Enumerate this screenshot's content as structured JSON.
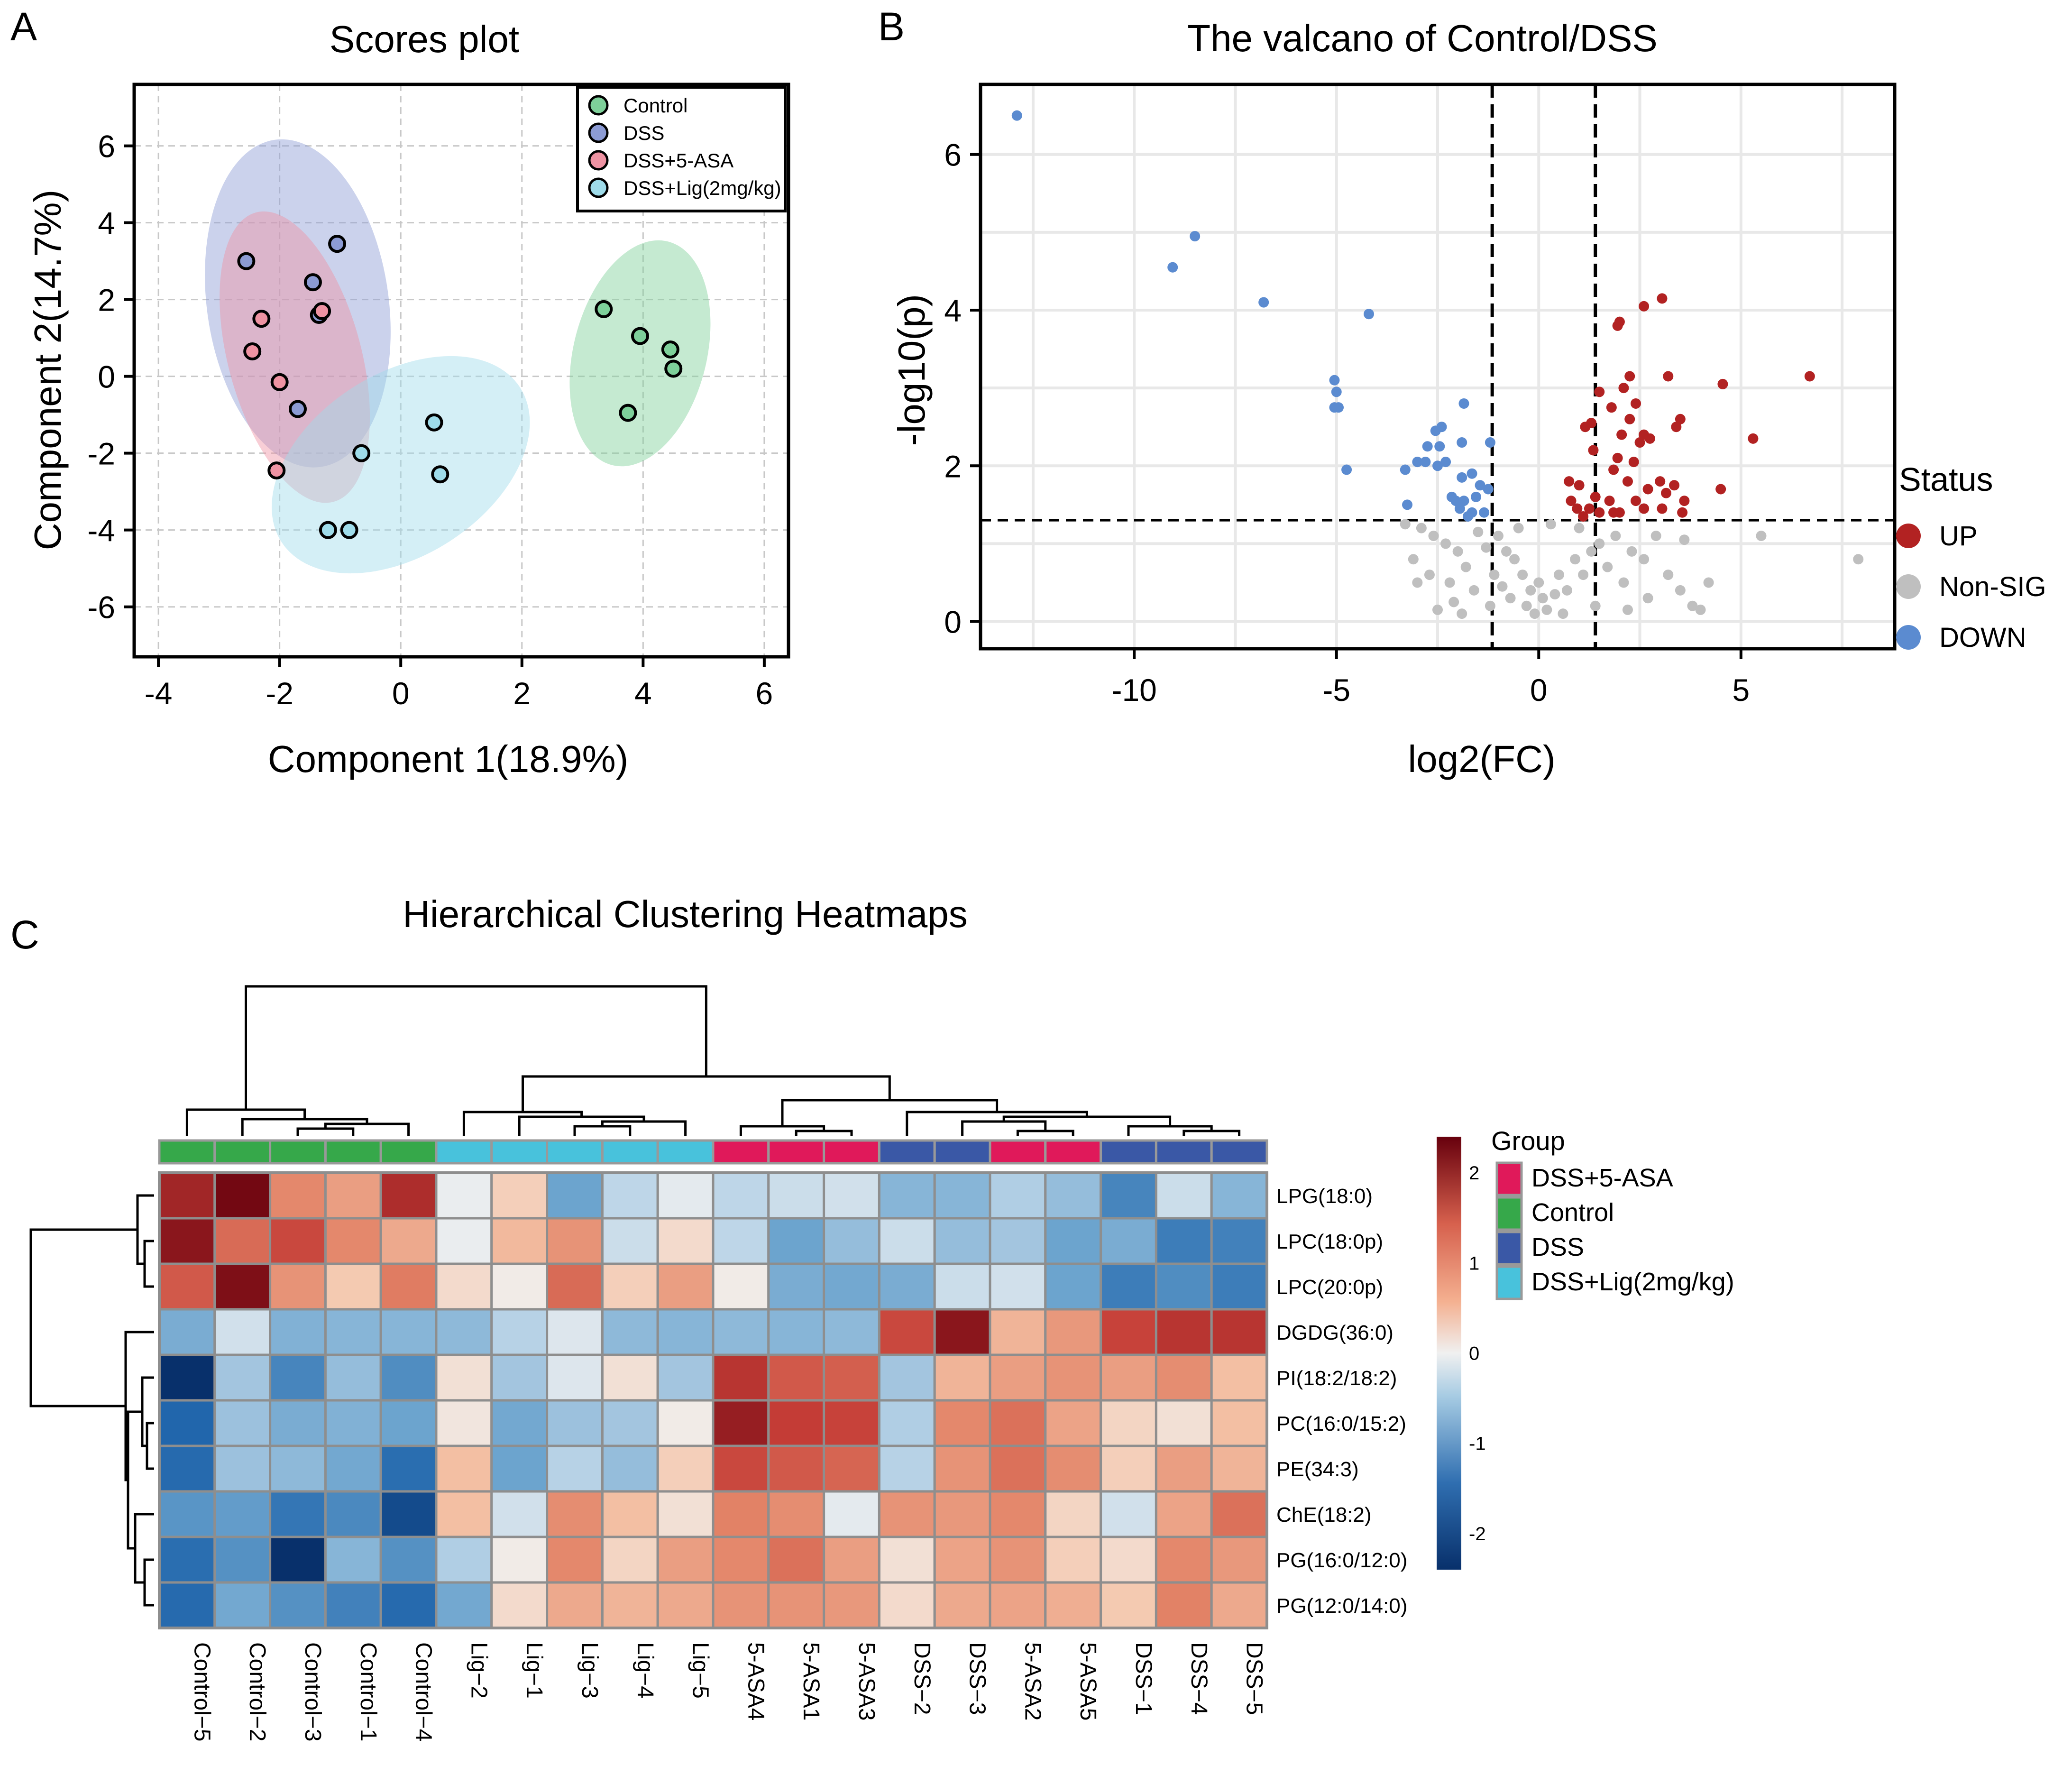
{
  "panels": {
    "a": {
      "letter": "A"
    },
    "b": {
      "letter": "B"
    },
    "c": {
      "letter": "C"
    }
  },
  "chart_data": [
    {
      "type": "scatter",
      "title": "Scores plot",
      "xlabel": "Component 1(18.9%)",
      "ylabel": "Component 2(14.7%)",
      "xlim": [
        -4.4,
        6.4
      ],
      "ylim": [
        -7.3,
        7.6
      ],
      "xticks": [
        -4,
        -2,
        0,
        2,
        4,
        6
      ],
      "yticks": [
        -6,
        -4,
        -2,
        0,
        2,
        4,
        6
      ],
      "grid": true,
      "legend_position": "top-right",
      "series": [
        {
          "name": "Control",
          "color": "#7ed09a",
          "ellipse": {
            "cx": 3.95,
            "cy": 0.6,
            "rx": 1.1,
            "ry": 3.0,
            "angle_deg": 14
          },
          "points": [
            [
              3.35,
              1.75
            ],
            [
              3.95,
              1.05
            ],
            [
              4.45,
              0.7
            ],
            [
              4.5,
              0.2
            ],
            [
              3.75,
              -0.95
            ]
          ]
        },
        {
          "name": "DSS",
          "color": "#8c9bd4",
          "ellipse": {
            "cx": -1.7,
            "cy": 1.9,
            "rx": 1.5,
            "ry": 4.3,
            "angle_deg": -8
          },
          "points": [
            [
              -2.55,
              3.0
            ],
            [
              -1.05,
              3.45
            ],
            [
              -1.45,
              2.45
            ],
            [
              -1.35,
              1.6
            ],
            [
              -1.7,
              -0.85
            ]
          ]
        },
        {
          "name": "DSS+5-ASA",
          "color": "#ef93a3",
          "ellipse": {
            "cx": -1.75,
            "cy": 0.5,
            "rx": 1.1,
            "ry": 3.9,
            "angle_deg": -15
          },
          "points": [
            [
              -2.3,
              1.5
            ],
            [
              -1.3,
              1.7
            ],
            [
              -2.45,
              0.65
            ],
            [
              -2.0,
              -0.15
            ],
            [
              -2.05,
              -2.45
            ]
          ]
        },
        {
          "name": "DSS+Lig(2mg/kg)",
          "color": "#9fdcea",
          "ellipse": {
            "cx": 0.0,
            "cy": -2.3,
            "rx": 1.5,
            "ry": 3.7,
            "angle_deg": 57
          },
          "points": [
            [
              0.55,
              -1.2
            ],
            [
              -0.65,
              -2.0
            ],
            [
              0.65,
              -2.55
            ],
            [
              -1.2,
              -4.0
            ],
            [
              -0.85,
              -4.0
            ]
          ]
        }
      ]
    },
    {
      "type": "scatter",
      "title": "The valcano of Control/DSS",
      "xlabel": "log2(FC)",
      "ylabel": "-log10(p)",
      "xlim": [
        -13.8,
        8.8
      ],
      "ylim": [
        -0.35,
        6.9
      ],
      "xticks": [
        -10,
        -5,
        0,
        5
      ],
      "yticks": [
        0,
        2,
        4,
        6
      ],
      "grid": true,
      "thresholds": {
        "fc_lines": [
          -1.15,
          1.4
        ],
        "p_line": 1.3
      },
      "legend_title": "Status",
      "legend_position": "right",
      "series": [
        {
          "name": "UP",
          "color": "#b22222",
          "points": [
            [
              2.6,
              4.05
            ],
            [
              3.05,
              4.15
            ],
            [
              2.0,
              3.85
            ],
            [
              1.95,
              3.8
            ],
            [
              6.7,
              3.15
            ],
            [
              4.55,
              3.05
            ],
            [
              2.25,
              3.15
            ],
            [
              3.2,
              3.15
            ],
            [
              1.5,
              2.95
            ],
            [
              2.1,
              3.0
            ],
            [
              2.4,
              2.8
            ],
            [
              1.8,
              2.75
            ],
            [
              2.25,
              2.6
            ],
            [
              3.5,
              2.6
            ],
            [
              3.4,
              2.5
            ],
            [
              1.3,
              2.55
            ],
            [
              1.15,
              2.5
            ],
            [
              2.05,
              2.4
            ],
            [
              2.6,
              2.4
            ],
            [
              2.75,
              2.35
            ],
            [
              2.5,
              2.3
            ],
            [
              5.3,
              2.35
            ],
            [
              1.35,
              2.2
            ],
            [
              1.95,
              2.1
            ],
            [
              2.35,
              2.05
            ],
            [
              1.85,
              1.95
            ],
            [
              0.75,
              1.8
            ],
            [
              1.0,
              1.75
            ],
            [
              2.2,
              1.8
            ],
            [
              2.7,
              1.7
            ],
            [
              3.0,
              1.8
            ],
            [
              3.35,
              1.75
            ],
            [
              4.5,
              1.7
            ],
            [
              3.15,
              1.65
            ],
            [
              0.8,
              1.55
            ],
            [
              1.4,
              1.6
            ],
            [
              1.75,
              1.55
            ],
            [
              2.4,
              1.55
            ],
            [
              3.6,
              1.55
            ],
            [
              0.95,
              1.45
            ],
            [
              1.25,
              1.45
            ],
            [
              1.5,
              1.4
            ],
            [
              2.0,
              1.4
            ],
            [
              2.6,
              1.45
            ],
            [
              3.05,
              1.45
            ],
            [
              3.55,
              1.4
            ],
            [
              1.85,
              1.4
            ],
            [
              1.1,
              1.35
            ]
          ]
        },
        {
          "name": "Non-SIG",
          "color": "#bfbfbf",
          "points": [
            [
              -2.9,
              1.2
            ],
            [
              -2.6,
              1.1
            ],
            [
              -3.1,
              0.8
            ],
            [
              -2.7,
              0.6
            ],
            [
              -3.0,
              0.5
            ],
            [
              -2.3,
              1.0
            ],
            [
              -2.0,
              0.9
            ],
            [
              -1.8,
              0.7
            ],
            [
              -2.2,
              0.5
            ],
            [
              -1.6,
              0.4
            ],
            [
              -1.5,
              1.15
            ],
            [
              -1.3,
              0.95
            ],
            [
              -1.0,
              1.1
            ],
            [
              -0.8,
              0.9
            ],
            [
              -0.6,
              0.8
            ],
            [
              -1.1,
              0.6
            ],
            [
              -0.9,
              0.45
            ],
            [
              -0.7,
              0.3
            ],
            [
              -0.4,
              0.6
            ],
            [
              -0.2,
              0.4
            ],
            [
              -0.3,
              0.2
            ],
            [
              0.0,
              0.5
            ],
            [
              0.1,
              0.3
            ],
            [
              0.2,
              0.15
            ],
            [
              -0.1,
              0.1
            ],
            [
              0.4,
              0.35
            ],
            [
              0.5,
              0.6
            ],
            [
              0.7,
              0.4
            ],
            [
              0.9,
              0.8
            ],
            [
              1.1,
              0.6
            ],
            [
              1.3,
              0.9
            ],
            [
              1.5,
              1.0
            ],
            [
              1.7,
              0.7
            ],
            [
              1.9,
              1.1
            ],
            [
              2.1,
              0.5
            ],
            [
              2.3,
              0.9
            ],
            [
              2.6,
              0.8
            ],
            [
              2.9,
              1.1
            ],
            [
              3.2,
              0.6
            ],
            [
              3.5,
              0.4
            ],
            [
              3.8,
              0.2
            ],
            [
              4.0,
              0.15
            ],
            [
              5.5,
              1.1
            ],
            [
              7.9,
              0.8
            ],
            [
              -1.9,
              0.1
            ],
            [
              -1.2,
              0.2
            ],
            [
              0.6,
              0.1
            ],
            [
              1.4,
              0.2
            ],
            [
              2.2,
              0.15
            ],
            [
              2.7,
              0.3
            ],
            [
              -2.5,
              0.15
            ],
            [
              -0.5,
              1.2
            ],
            [
              0.3,
              1.25
            ],
            [
              1.0,
              1.2
            ],
            [
              -3.3,
              1.25
            ],
            [
              3.6,
              1.05
            ],
            [
              4.2,
              0.5
            ],
            [
              -2.1,
              0.25
            ]
          ]
        },
        {
          "name": "DOWN",
          "color": "#5b8bd0",
          "points": [
            [
              -12.9,
              6.5
            ],
            [
              -8.5,
              4.95
            ],
            [
              -9.05,
              4.55
            ],
            [
              -6.8,
              4.1
            ],
            [
              -4.2,
              3.95
            ],
            [
              -5.05,
              3.1
            ],
            [
              -5.0,
              2.95
            ],
            [
              -5.05,
              2.75
            ],
            [
              -4.95,
              2.75
            ],
            [
              -1.85,
              2.8
            ],
            [
              -2.4,
              2.5
            ],
            [
              -2.55,
              2.45
            ],
            [
              -1.9,
              2.3
            ],
            [
              -2.75,
              2.25
            ],
            [
              -2.45,
              2.25
            ],
            [
              -1.2,
              2.3
            ],
            [
              -3.0,
              2.05
            ],
            [
              -2.8,
              2.05
            ],
            [
              -2.5,
              2.0
            ],
            [
              -2.3,
              2.05
            ],
            [
              -4.75,
              1.95
            ],
            [
              -3.3,
              1.95
            ],
            [
              -1.65,
              1.9
            ],
            [
              -1.9,
              1.85
            ],
            [
              -1.25,
              1.7
            ],
            [
              -1.45,
              1.75
            ],
            [
              -2.15,
              1.6
            ],
            [
              -1.85,
              1.55
            ],
            [
              -1.55,
              1.6
            ],
            [
              -2.05,
              1.55
            ],
            [
              -3.25,
              1.5
            ],
            [
              -1.95,
              1.45
            ],
            [
              -1.65,
              1.4
            ],
            [
              -1.35,
              1.4
            ],
            [
              -1.75,
              1.35
            ]
          ]
        }
      ]
    },
    {
      "type": "heatmap",
      "title": "Hierarchical Clustering Heatmaps",
      "columns": [
        "Control−5",
        "Control−2",
        "Control−3",
        "Control−1",
        "Control−4",
        "Lig−2",
        "Lig−1",
        "Lig−3",
        "Lig−4",
        "Lig−5",
        "5-ASA4",
        "5-ASA1",
        "5-ASA3",
        "DSS−2",
        "DSS−3",
        "5-ASA2",
        "5-ASA5",
        "DSS−1",
        "DSS−4",
        "DSS−5"
      ],
      "column_groups": [
        "Control",
        "Control",
        "Control",
        "Control",
        "Control",
        "DSS+Lig(2mg/kg)",
        "DSS+Lig(2mg/kg)",
        "DSS+Lig(2mg/kg)",
        "DSS+Lig(2mg/kg)",
        "DSS+Lig(2mg/kg)",
        "DSS+5-ASA",
        "DSS+5-ASA",
        "DSS+5-ASA",
        "DSS",
        "DSS",
        "DSS+5-ASA",
        "DSS+5-ASA",
        "DSS",
        "DSS",
        "DSS"
      ],
      "rows": [
        "LPG(18:0)",
        "LPC(18:0p)",
        "LPC(20:0p)",
        "DGDG(36:0)",
        "PI(18:2/18:2)",
        "PC(16:0/15:2)",
        "PE(34:3)",
        "ChE(18:2)",
        "PG(16:0/12:0)",
        "PG(12:0/14:0)"
      ],
      "values": [
        [
          1.9,
          2.3,
          0.95,
          0.75,
          1.8,
          -0.05,
          0.3,
          -1.0,
          -0.4,
          -0.1,
          -0.4,
          -0.3,
          -0.25,
          -0.8,
          -0.8,
          -0.5,
          -0.7,
          -1.4,
          -0.3,
          -0.8
        ],
        [
          2.1,
          1.2,
          1.5,
          0.95,
          0.65,
          -0.05,
          0.5,
          0.85,
          -0.3,
          0.2,
          -0.4,
          -1.0,
          -0.7,
          -0.3,
          -0.7,
          -0.6,
          -1.0,
          -0.9,
          -1.5,
          -1.45
        ],
        [
          1.35,
          2.2,
          0.85,
          0.35,
          1.05,
          0.2,
          0.05,
          1.2,
          0.3,
          0.75,
          0.05,
          -0.9,
          -0.95,
          -0.9,
          -0.3,
          -0.25,
          -1.0,
          -1.5,
          -1.3,
          -1.5
        ],
        [
          -0.9,
          -0.25,
          -0.85,
          -0.8,
          -0.8,
          -0.75,
          -0.45,
          -0.15,
          -0.75,
          -0.8,
          -0.75,
          -0.8,
          -0.75,
          1.5,
          2.1,
          0.55,
          0.8,
          1.55,
          1.7,
          1.7
        ],
        [
          -2.4,
          -0.6,
          -1.4,
          -0.7,
          -1.3,
          0.15,
          -0.6,
          -0.15,
          0.15,
          -0.6,
          1.7,
          1.35,
          1.3,
          -0.6,
          0.55,
          0.75,
          0.85,
          0.75,
          0.9,
          0.45
        ],
        [
          -1.8,
          -0.65,
          -0.9,
          -0.85,
          -1.0,
          0.1,
          -0.95,
          -0.65,
          -0.6,
          0.05,
          2.0,
          1.6,
          1.55,
          -0.5,
          0.95,
          1.15,
          0.7,
          0.25,
          0.15,
          0.45
        ],
        [
          -1.75,
          -0.65,
          -0.75,
          -0.95,
          -1.7,
          0.45,
          -1.0,
          -0.45,
          -0.7,
          0.3,
          1.5,
          1.35,
          1.25,
          -0.45,
          0.85,
          1.15,
          0.9,
          0.3,
          0.75,
          0.55
        ],
        [
          -1.2,
          -1.1,
          -1.6,
          -1.35,
          -2.1,
          0.45,
          -0.25,
          0.9,
          0.45,
          0.15,
          1.0,
          0.9,
          -0.1,
          0.85,
          0.8,
          0.95,
          0.25,
          -0.25,
          0.7,
          1.15
        ],
        [
          -1.7,
          -1.25,
          -2.4,
          -0.8,
          -1.25,
          -0.5,
          0.05,
          0.95,
          0.25,
          0.75,
          0.95,
          1.15,
          0.75,
          0.15,
          0.7,
          0.85,
          0.3,
          0.2,
          0.95,
          0.8
        ],
        [
          -1.75,
          -0.95,
          -1.25,
          -1.45,
          -1.75,
          -0.95,
          0.2,
          0.65,
          0.55,
          0.65,
          0.85,
          0.85,
          0.8,
          0.2,
          0.65,
          0.7,
          0.6,
          0.35,
          1.0,
          0.65
        ]
      ],
      "color_scale": {
        "min": -2.4,
        "max": 2.4,
        "low": "#08306b",
        "mid": "#f0f0f0",
        "high": "#67000d"
      },
      "colorbar_ticks": [
        2,
        1,
        0,
        -1,
        -2
      ],
      "legend_title": "Group",
      "group_colors": [
        {
          "name": "DSS+5-ASA",
          "color": "#e0195a"
        },
        {
          "name": "Control",
          "color": "#36a84a"
        },
        {
          "name": "DSS",
          "color": "#3a58a6"
        },
        {
          "name": "DSS+Lig(2mg/kg)",
          "color": "#48c2dc"
        }
      ],
      "col_dendrogram_leaf_order": [
        "Control−5",
        "Control−2",
        "Control−3",
        "Control−1",
        "Control−4",
        "Lig−2",
        "Lig−1",
        "Lig−3",
        "Lig−4",
        "Lig−5",
        "5-ASA4",
        "5-ASA1",
        "5-ASA3",
        "DSS−2",
        "DSS−3",
        "5-ASA2",
        "5-ASA5",
        "DSS−1",
        "DSS−4",
        "DSS−5"
      ]
    }
  ]
}
